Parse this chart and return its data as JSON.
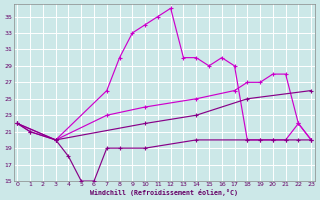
{
  "background_color": "#cce8e8",
  "grid_color": "#ffffff",
  "line_color1": "#cc00cc",
  "line_color2": "#880088",
  "xlim": [
    0,
    23
  ],
  "ylim": [
    15,
    36
  ],
  "yticks": [
    15,
    17,
    19,
    21,
    23,
    25,
    27,
    29,
    31,
    33,
    35
  ],
  "xticks": [
    0,
    1,
    2,
    3,
    4,
    5,
    6,
    7,
    8,
    9,
    10,
    11,
    12,
    13,
    14,
    15,
    16,
    17,
    18,
    19,
    20,
    21,
    22,
    23
  ],
  "xlabel": "Windchill (Refroidissement éolien,°C)",
  "series1_x": [
    0,
    1,
    3,
    7,
    8,
    9,
    10,
    11,
    12,
    13,
    14,
    15,
    16,
    17,
    18,
    19,
    20,
    21,
    22,
    23
  ],
  "series1_y": [
    22,
    21,
    20,
    26,
    30,
    33,
    34,
    35,
    36,
    30,
    30,
    29,
    30,
    29,
    20,
    20,
    20,
    20,
    22,
    20
  ],
  "series2_x": [
    0,
    3,
    7,
    10,
    14,
    17,
    18,
    19,
    20,
    21,
    22,
    23
  ],
  "series2_y": [
    22,
    20,
    23,
    24,
    25,
    26,
    27,
    27,
    28,
    28,
    22,
    20
  ],
  "series3_x": [
    0,
    3,
    10,
    14,
    18,
    23
  ],
  "series3_y": [
    22,
    20,
    22,
    23,
    25,
    26
  ],
  "series4_x": [
    0,
    1,
    3,
    4,
    5,
    6,
    7,
    8,
    10,
    14,
    18,
    19,
    20,
    21,
    22,
    23
  ],
  "series4_y": [
    22,
    21,
    20,
    18,
    15,
    15,
    19,
    19,
    19,
    20,
    20,
    20,
    20,
    20,
    20,
    20
  ]
}
